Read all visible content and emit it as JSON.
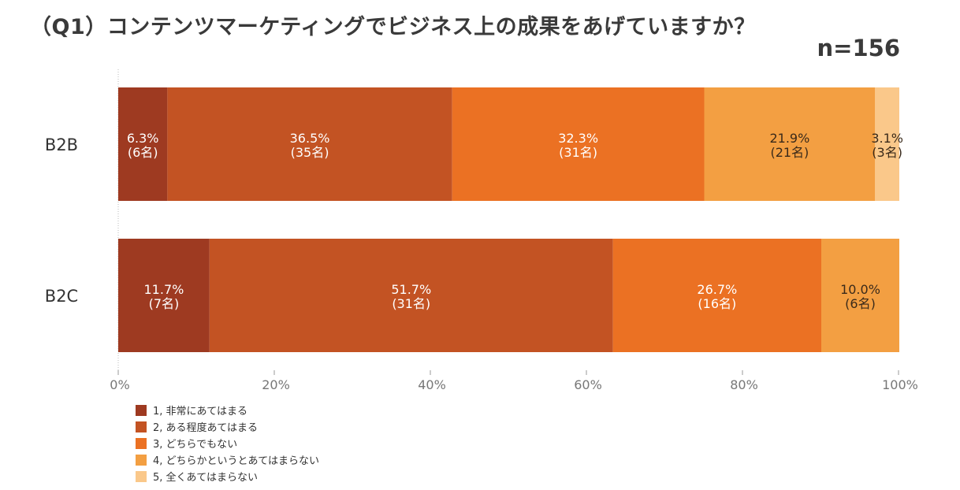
{
  "title": "（Q1）コンテンツマーケティングでビジネス上の成果をあげていますか？",
  "sample_size": "n=156",
  "chart_data": {
    "type": "bar",
    "orientation": "horizontal",
    "stacked": true,
    "categories": [
      "B2B",
      "B2C"
    ],
    "xlim": [
      0,
      100
    ],
    "x_ticks": [
      "0%",
      "20%",
      "40%",
      "60%",
      "80%",
      "100%"
    ],
    "legend_position": "bottom-left",
    "series": [
      {
        "name": "1, 非常にあてはまる",
        "color": "#9e3a21",
        "values": [
          6.3,
          11.7
        ],
        "labels": [
          "6.3%",
          "11.7%"
        ],
        "counts": [
          "(6名)",
          "(7名)"
        ]
      },
      {
        "name": "2, ある程度あてはまる",
        "color": "#c35323",
        "values": [
          36.5,
          51.7
        ],
        "labels": [
          "36.5%",
          "51.7%"
        ],
        "counts": [
          "(35名)",
          "(31名)"
        ]
      },
      {
        "name": "3, どちらでもない",
        "color": "#eb7123",
        "values": [
          32.3,
          26.7
        ],
        "labels": [
          "32.3%",
          "26.7%"
        ],
        "counts": [
          "(31名)",
          "(16名)"
        ]
      },
      {
        "name": "4, どちらかというとあてはまらない",
        "color": "#f39f42",
        "values": [
          21.9,
          10.0
        ],
        "labels": [
          "21.9%",
          "10.0%"
        ],
        "counts": [
          "(21名)",
          "(6名)"
        ]
      },
      {
        "name": "5, 全くあてはまらない",
        "color": "#fac88a",
        "values": [
          3.1,
          0
        ],
        "labels": [
          "3.1%",
          ""
        ],
        "counts": [
          "(3名)",
          ""
        ]
      }
    ]
  }
}
